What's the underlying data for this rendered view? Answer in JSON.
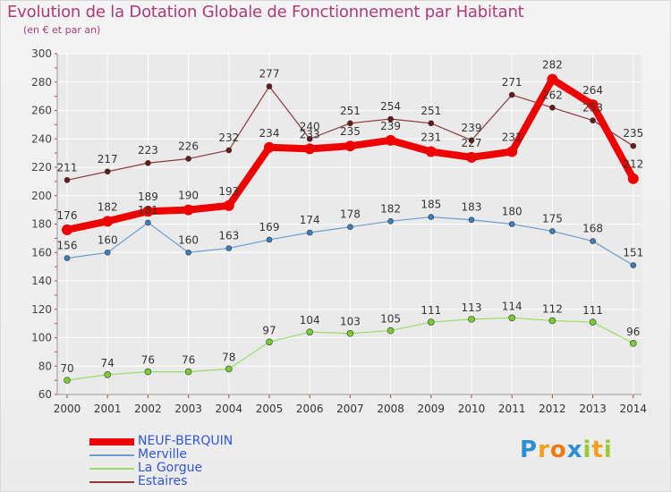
{
  "title": "Evolution de la Dotation Globale de Fonctionnement par Habitant",
  "subtitle": "(en € et par an)",
  "chart_data": {
    "type": "line",
    "title": "Evolution de la Dotation Globale de Fonctionnement par Habitant",
    "subtitle": "(en € et par an)",
    "xlabel": "",
    "ylabel": "",
    "x": [
      "2000",
      "2001",
      "2002",
      "2003",
      "2004",
      "2005",
      "2006",
      "2007",
      "2008",
      "2009",
      "2010",
      "2011",
      "2012",
      "2013",
      "2014"
    ],
    "ylim": [
      60,
      300
    ],
    "yticks": [
      60,
      80,
      100,
      120,
      140,
      160,
      180,
      200,
      220,
      240,
      260,
      280,
      300
    ],
    "grid": true,
    "legend_position": "bottom-left",
    "series": [
      {
        "name": "NEUF-BERQUIN",
        "color": "#ee0000",
        "values": [
          176,
          182,
          189,
          190,
          193,
          234,
          233,
          235,
          239,
          231,
          227,
          231,
          282,
          264,
          212
        ],
        "labels": [
          "176",
          "182",
          "189",
          "190",
          "193",
          "234",
          "233",
          "235",
          "239",
          "231",
          "227",
          "231",
          "282",
          "264",
          "212"
        ]
      },
      {
        "name": "Merville",
        "color": "#6a9ed0",
        "values": [
          156,
          160,
          181,
          160,
          163,
          169,
          174,
          178,
          182,
          185,
          183,
          180,
          175,
          168,
          151
        ],
        "labels": [
          "156",
          "160",
          "181",
          "160",
          "163",
          "169",
          "174",
          "178",
          "182",
          "185",
          "183",
          "180",
          "175",
          "168",
          "151"
        ]
      },
      {
        "name": "La Gorgue",
        "color": "#99dd66",
        "values": [
          70,
          74,
          76,
          76,
          78,
          97,
          104,
          103,
          105,
          111,
          113,
          114,
          112,
          111,
          96
        ],
        "labels": [
          "70",
          "74",
          "76",
          "76",
          "78",
          "97",
          "104",
          "103",
          "105",
          "111",
          "113",
          "114",
          "112",
          "111",
          "96"
        ]
      },
      {
        "name": "Estaires",
        "color": "#8a3a3a",
        "values": [
          211,
          217,
          223,
          226,
          232,
          277,
          240,
          251,
          254,
          251,
          239,
          271,
          262,
          253,
          235
        ],
        "labels": [
          "211",
          "217",
          "223",
          "226",
          "232",
          "277",
          "240",
          "251",
          "254",
          "251",
          "239",
          "271",
          "262",
          "253",
          "235"
        ]
      }
    ]
  },
  "logo": {
    "text": "Proxiti",
    "letters": [
      "P",
      "r",
      "o",
      "x",
      "i",
      "t",
      "i"
    ],
    "colors": [
      "#2b8fd6",
      "#f0a020",
      "#f07a10",
      "#2b8fd6",
      "#99cc33",
      "#f0a020",
      "#99cc33"
    ]
  }
}
